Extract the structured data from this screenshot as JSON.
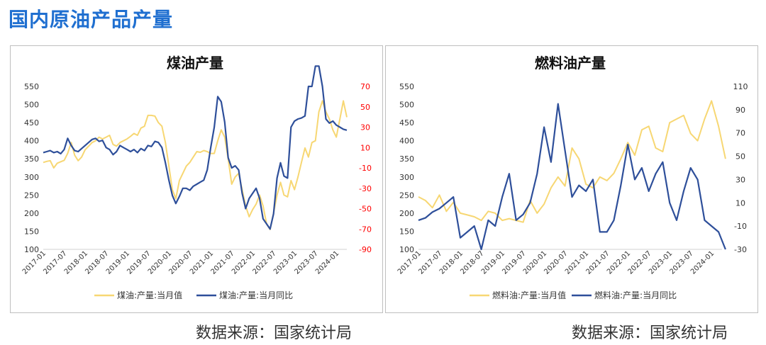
{
  "page": {
    "title": "国内原油产品产量"
  },
  "sources": [
    "数据来源：国家统计局",
    "数据来源：国家统计局"
  ],
  "colors": {
    "value_series": "#f7d773",
    "yoy_series": "#2e4f9a",
    "right_axis_left_panel": "#ff0000",
    "right_axis_right_panel": "#333333",
    "title_blue": "#1f6fd0"
  },
  "chart_data": [
    {
      "type": "line",
      "title": "煤油产量",
      "x_tick_labels": [
        "2017-01",
        "2017-07",
        "2018-01",
        "2018-07",
        "2019-01",
        "2019-07",
        "2020-01",
        "2020-07",
        "2021-01",
        "2021-07",
        "2022-01",
        "2022-07",
        "2023-01",
        "2023-07",
        "2024-01"
      ],
      "y_left_ticks": [
        100,
        150,
        200,
        250,
        300,
        350,
        400,
        450,
        500,
        550
      ],
      "y_right_ticks": [
        -90,
        -70,
        -50,
        -30,
        -10,
        10,
        30,
        50,
        70
      ],
      "ylim_left": [
        100,
        550
      ],
      "ylim_right": [
        -90,
        70
      ],
      "right_axis_color": "red",
      "legend": [
        "煤油:产量:当月值",
        "煤油:产量:当月同比"
      ],
      "legend_position": "bottom",
      "series": [
        {
          "name": "煤油:产量:当月值",
          "axis": "left",
          "x": [
            0,
            1,
            2,
            3,
            4,
            5,
            6,
            7,
            8,
            9,
            10,
            11,
            12,
            13,
            14,
            15,
            16,
            17,
            18,
            19,
            20,
            21,
            22,
            23,
            24,
            25,
            26,
            27,
            28,
            29,
            30,
            31,
            32,
            33,
            34,
            35,
            36,
            37,
            38,
            39,
            40,
            41,
            42,
            43,
            44,
            45,
            46,
            47,
            48,
            49,
            50,
            51,
            52,
            53,
            54,
            55,
            56,
            57,
            58,
            59,
            60,
            61,
            62,
            63,
            64,
            65,
            66,
            67,
            68,
            69,
            70,
            71,
            72,
            73,
            74,
            75,
            76,
            77,
            78,
            79,
            80,
            81,
            82,
            83,
            84,
            85,
            86,
            87
          ],
          "values": [
            340,
            343,
            345,
            325,
            338,
            342,
            346,
            365,
            395,
            360,
            345,
            355,
            375,
            385,
            395,
            400,
            410,
            405,
            410,
            415,
            390,
            385,
            395,
            400,
            405,
            412,
            420,
            415,
            435,
            440,
            470,
            470,
            468,
            450,
            440,
            395,
            330,
            265,
            240,
            290,
            310,
            330,
            340,
            355,
            370,
            368,
            373,
            370,
            365,
            365,
            400,
            430,
            410,
            350,
            280,
            300,
            310,
            265,
            220,
            190,
            210,
            225,
            250,
            220,
            170,
            155,
            200,
            250,
            285,
            250,
            245,
            290,
            265,
            300,
            340,
            380,
            355,
            395,
            400,
            480,
            510,
            480,
            460,
            430,
            410,
            460,
            510,
            465
          ]
        },
        {
          "name": "煤油:产量:当月同比",
          "axis": "right",
          "x": [
            0,
            1,
            2,
            3,
            4,
            5,
            6,
            7,
            8,
            9,
            10,
            11,
            12,
            13,
            14,
            15,
            16,
            17,
            18,
            19,
            20,
            21,
            22,
            23,
            24,
            25,
            26,
            27,
            28,
            29,
            30,
            31,
            32,
            33,
            34,
            35,
            36,
            37,
            38,
            39,
            40,
            41,
            42,
            43,
            44,
            45,
            46,
            47,
            48,
            49,
            50,
            51,
            52,
            53,
            54,
            55,
            56,
            57,
            58,
            59,
            60,
            61,
            62,
            63,
            64,
            65,
            66,
            67,
            68,
            69,
            70,
            71,
            72,
            73,
            74,
            75,
            76,
            77,
            78,
            79,
            80,
            81,
            82,
            83,
            84,
            85,
            86,
            87
          ],
          "values": [
            5,
            6,
            7,
            5,
            6,
            4,
            8,
            19,
            12,
            7,
            6,
            9,
            12,
            15,
            18,
            19,
            16,
            17,
            10,
            8,
            3,
            6,
            12,
            10,
            8,
            6,
            8,
            5,
            9,
            7,
            12,
            11,
            16,
            15,
            10,
            -5,
            -22,
            -37,
            -45,
            -38,
            -30,
            -30,
            -32,
            -28,
            -26,
            -24,
            -22,
            -12,
            10,
            30,
            60,
            55,
            35,
            0,
            -10,
            -8,
            -12,
            -35,
            -50,
            -40,
            -35,
            -30,
            -40,
            -60,
            -65,
            -70,
            -55,
            -20,
            -5,
            -18,
            -20,
            30,
            36,
            38,
            39,
            41,
            70,
            70,
            90,
            90,
            70,
            38,
            34,
            36,
            32,
            30,
            28,
            27
          ]
        }
      ]
    },
    {
      "type": "line",
      "title": "燃料油产量",
      "x_tick_labels": [
        "2017-01",
        "2017-07",
        "2018-01",
        "2018-07",
        "2019-01",
        "2019-07",
        "2020-01",
        "2020-07",
        "2021-01",
        "2021-07",
        "2022-01",
        "2022-07",
        "2023-01",
        "2023-07",
        "2024-01"
      ],
      "y_left_ticks": [
        100,
        150,
        200,
        250,
        300,
        350,
        400,
        450,
        500,
        550
      ],
      "y_right_ticks": [
        -30,
        -10,
        10,
        30,
        50,
        70,
        90,
        110
      ],
      "ylim_left": [
        100,
        550
      ],
      "ylim_right": [
        -30,
        110
      ],
      "right_axis_color": "black",
      "legend": [
        "燃料油:产量:当月值",
        "燃料油:产量:当月同比"
      ],
      "legend_position": "bottom",
      "series": [
        {
          "name": "燃料油:产量:当月值",
          "axis": "left",
          "x": [
            0,
            2,
            4,
            6,
            8,
            10,
            12,
            14,
            16,
            18,
            20,
            22,
            24,
            26,
            28,
            30,
            32,
            34,
            36,
            38,
            40,
            42,
            44,
            46,
            48,
            50,
            52,
            54,
            56,
            58,
            60,
            62,
            64,
            66,
            68,
            70,
            72,
            74,
            76,
            78,
            80,
            82,
            84,
            86,
            88
          ],
          "values": [
            245,
            235,
            215,
            250,
            205,
            230,
            200,
            195,
            190,
            180,
            205,
            200,
            180,
            185,
            180,
            175,
            235,
            200,
            225,
            270,
            300,
            275,
            380,
            350,
            280,
            270,
            300,
            290,
            310,
            350,
            395,
            360,
            430,
            440,
            380,
            370,
            450,
            460,
            470,
            420,
            400,
            460,
            510,
            440,
            350
          ]
        },
        {
          "name": "燃料油:产量:当月同比",
          "axis": "right",
          "x": [
            0,
            2,
            4,
            6,
            8,
            10,
            12,
            14,
            16,
            18,
            20,
            22,
            24,
            26,
            28,
            30,
            32,
            34,
            36,
            38,
            40,
            42,
            44,
            46,
            48,
            50,
            52,
            54,
            56,
            58,
            60,
            62,
            64,
            66,
            68,
            70,
            72,
            74,
            76,
            78,
            80,
            82,
            84,
            86,
            88
          ],
          "values": [
            -5,
            -3,
            2,
            5,
            10,
            15,
            -20,
            -15,
            -10,
            -30,
            -5,
            -10,
            15,
            35,
            -5,
            0,
            10,
            35,
            75,
            45,
            95,
            55,
            15,
            25,
            20,
            30,
            -15,
            -15,
            -5,
            25,
            60,
            30,
            40,
            20,
            35,
            45,
            10,
            -5,
            20,
            40,
            30,
            -5,
            -10,
            -15,
            -30
          ]
        }
      ]
    }
  ]
}
